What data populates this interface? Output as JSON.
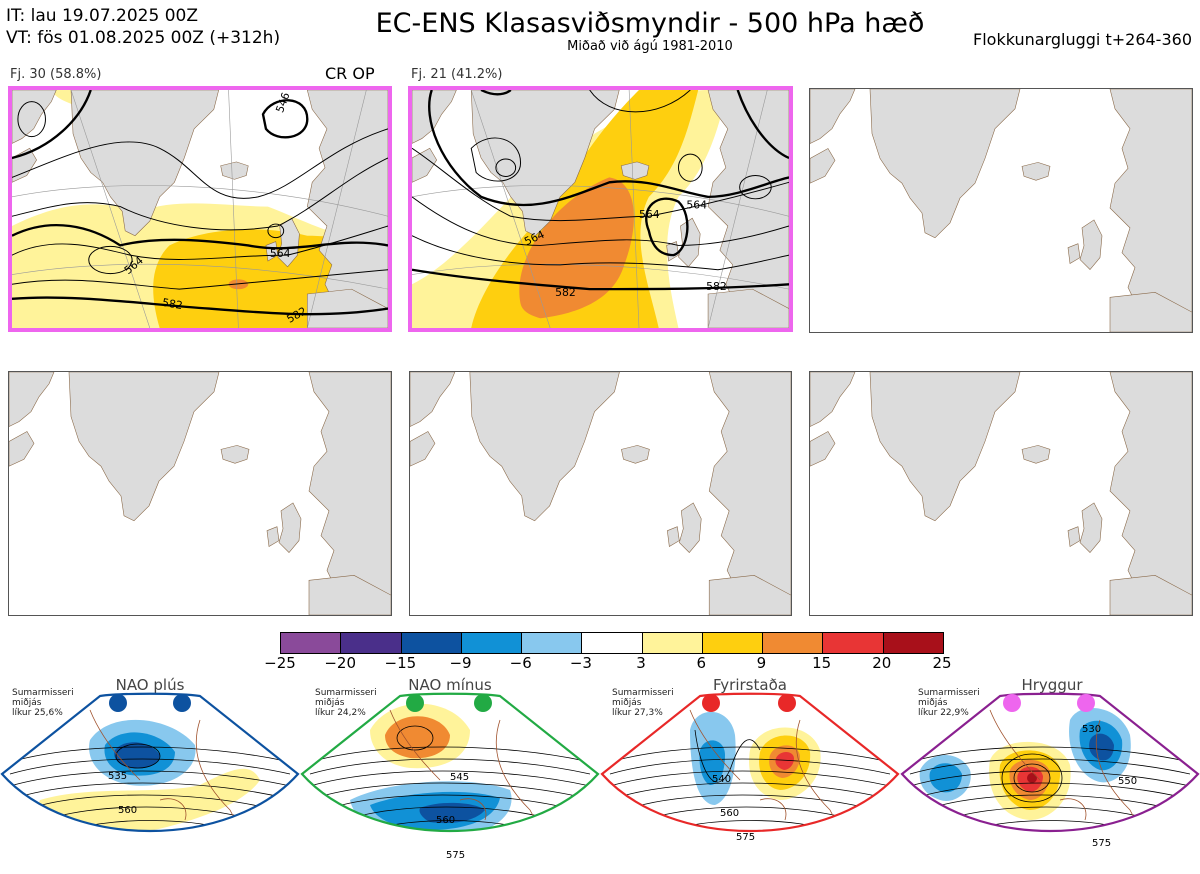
{
  "header": {
    "it": "IT: lau 19.07.2025 00Z",
    "vt": "VT: fös 01.08.2025 00Z  (+312h)",
    "title": "EC-ENS Klasasviðsmyndir - 500 hPa hæð",
    "subtitle": "Miðað við ágú 1981-2010",
    "window": "Flokkunargluggi t+264-360"
  },
  "panels": [
    {
      "label": "Fj. 30 (58.8%)",
      "extra": "CR OP",
      "highlight": true,
      "contours": [
        "546",
        "564",
        "564",
        "582",
        "582"
      ]
    },
    {
      "label": "Fj. 21 (41.2%)",
      "extra": "",
      "highlight": true,
      "contours": [
        "564",
        "564",
        "564",
        "582",
        "582"
      ]
    },
    {
      "label": "",
      "extra": "",
      "highlight": false,
      "contours": []
    },
    {
      "label": "",
      "extra": "",
      "highlight": false,
      "contours": []
    },
    {
      "label": "",
      "extra": "",
      "highlight": false,
      "contours": []
    },
    {
      "label": "",
      "extra": "",
      "highlight": false,
      "contours": []
    }
  ],
  "colorbar": {
    "colors": [
      "#8a4a9a",
      "#4a2f8a",
      "#0d52a0",
      "#1191d6",
      "#88c8ee",
      "#ffffff",
      "#fff39a",
      "#fecf0f",
      "#f08a32",
      "#e83535",
      "#a8101a"
    ],
    "ticks": [
      "−25",
      "−20",
      "−15",
      "−9",
      "−6",
      "−3",
      "3",
      "6",
      "9",
      "15",
      "20",
      "25"
    ]
  },
  "regimes": [
    {
      "name": "NAO plús",
      "season": "Sumarmisseri",
      "mean": "miðjás",
      "prob": "líkur 25,6%",
      "color": "#0d52a0",
      "contours": [
        "535",
        "560"
      ]
    },
    {
      "name": "NAO mínus",
      "season": "Sumarmisseri",
      "mean": "miðjás",
      "prob": "líkur 24,2%",
      "color": "#22aa44",
      "contours": [
        "545",
        "560",
        "575"
      ]
    },
    {
      "name": "Fyrirstaða",
      "season": "Sumarmisseri",
      "mean": "miðjás",
      "prob": "líkur 27,3%",
      "color": "#e82828",
      "contours": [
        "540",
        "560",
        "575"
      ]
    },
    {
      "name": "Hryggur",
      "season": "Sumarmisseri",
      "mean": "miðjás",
      "prob": "líkur 22,9%",
      "color": "#ee66ee",
      "contours": [
        "530",
        "550",
        "575"
      ]
    }
  ]
}
